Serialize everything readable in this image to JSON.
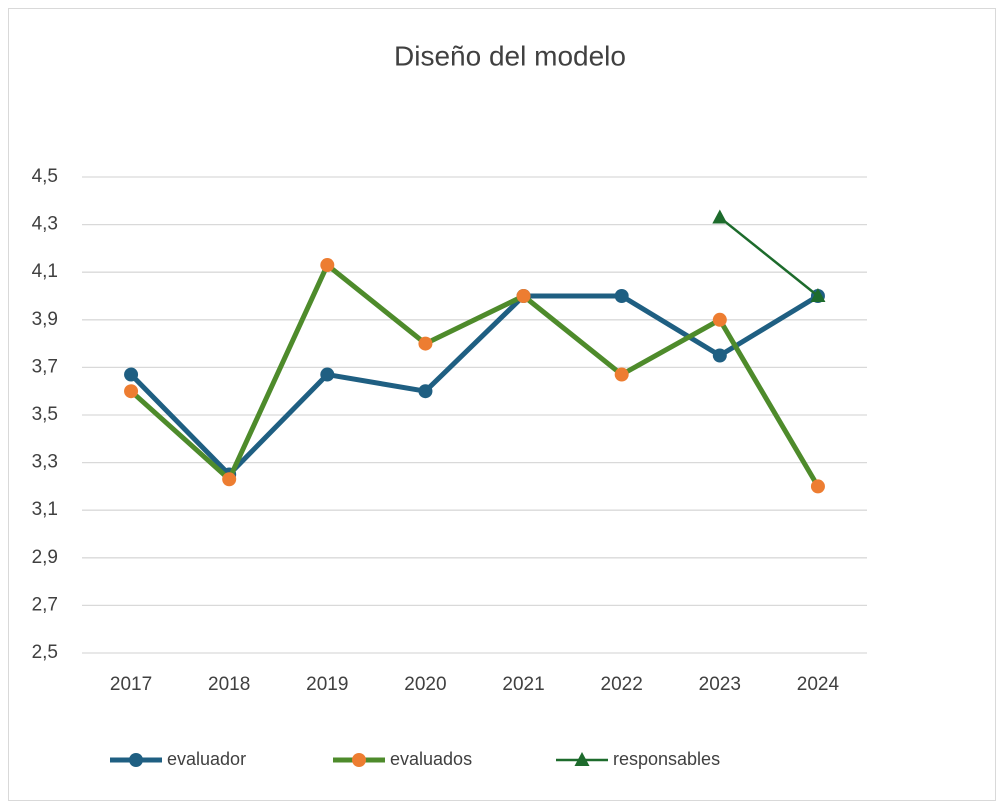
{
  "chart_data": {
    "type": "line",
    "title": "Diseño del modelo",
    "categories": [
      "2017",
      "2018",
      "2019",
      "2020",
      "2021",
      "2022",
      "2023",
      "2024"
    ],
    "series": [
      {
        "name": "evaluador",
        "color": "#1f5f82",
        "marker_color": "#1f5f82",
        "marker": "circle",
        "values": [
          3.67,
          3.25,
          3.67,
          3.6,
          4.0,
          4.0,
          3.75,
          4.0
        ]
      },
      {
        "name": "evaluados",
        "color": "#4e8b2b",
        "marker_color": "#ed7d31",
        "marker": "circle",
        "values": [
          3.6,
          3.23,
          4.13,
          3.8,
          4.0,
          3.67,
          3.9,
          3.2
        ]
      },
      {
        "name": "responsables",
        "color": "#1d6b2c",
        "marker_color": "#1d6b2c",
        "marker": "triangle",
        "values": [
          null,
          null,
          null,
          null,
          null,
          null,
          4.33,
          4.0
        ]
      }
    ],
    "ylim": [
      2.5,
      4.5
    ],
    "yticks": [
      {
        "value": 2.5,
        "label": "2,5"
      },
      {
        "value": 2.7,
        "label": "2,7"
      },
      {
        "value": 2.9,
        "label": "2,9"
      },
      {
        "value": 3.1,
        "label": "3,1"
      },
      {
        "value": 3.3,
        "label": "3,3"
      },
      {
        "value": 3.5,
        "label": "3,5"
      },
      {
        "value": 3.7,
        "label": "3,7"
      },
      {
        "value": 3.9,
        "label": "3,9"
      },
      {
        "value": 4.1,
        "label": "4,1"
      },
      {
        "value": 4.3,
        "label": "4,3"
      },
      {
        "value": 4.5,
        "label": "4,5"
      }
    ],
    "grid": true,
    "legend": "bottom"
  }
}
